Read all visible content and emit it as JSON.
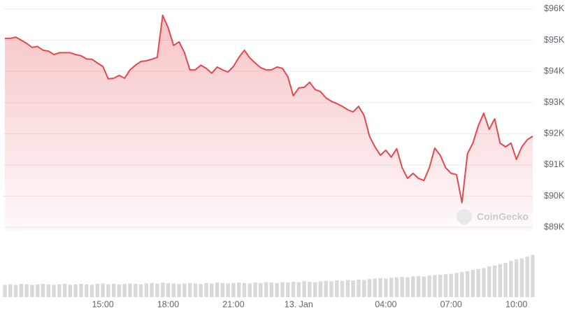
{
  "chart_data": {
    "type": "line",
    "categories": [
      null,
      null,
      null,
      null,
      null,
      null,
      null,
      null,
      null,
      null,
      null,
      null,
      null,
      null,
      null,
      null,
      null,
      null,
      "15:00",
      null,
      null,
      null,
      null,
      null,
      null,
      null,
      null,
      null,
      null,
      null,
      "18:00",
      null,
      null,
      null,
      null,
      null,
      null,
      null,
      null,
      null,
      null,
      null,
      "21:00",
      null,
      null,
      null,
      null,
      null,
      null,
      null,
      null,
      null,
      null,
      null,
      "13. Jan",
      null,
      null,
      null,
      null,
      null,
      null,
      null,
      null,
      null,
      null,
      null,
      null,
      null,
      null,
      null,
      "04:00",
      null,
      null,
      null,
      null,
      null,
      null,
      null,
      null,
      null,
      null,
      null,
      "07:00",
      null,
      null,
      null,
      null,
      null,
      null,
      null,
      null,
      null,
      null,
      null,
      "10:00",
      null,
      null,
      null
    ],
    "values": [
      95060,
      95060,
      95100,
      95000,
      94900,
      94770,
      94800,
      94680,
      94650,
      94540,
      94600,
      94600,
      94600,
      94540,
      94500,
      94400,
      94390,
      94270,
      94160,
      93760,
      93780,
      93870,
      93780,
      94050,
      94200,
      94320,
      94340,
      94390,
      94450,
      95800,
      95400,
      94830,
      94950,
      94600,
      94050,
      94050,
      94200,
      94100,
      93940,
      94140,
      94050,
      93980,
      94160,
      94450,
      94680,
      94430,
      94270,
      94120,
      94050,
      94050,
      94140,
      94100,
      93830,
      93220,
      93470,
      93490,
      93650,
      93420,
      93350,
      93150,
      93040,
      92970,
      92880,
      92770,
      92700,
      92880,
      92590,
      91920,
      91580,
      91310,
      91470,
      91250,
      91520,
      90910,
      90570,
      90730,
      90570,
      90500,
      90910,
      91540,
      91310,
      90910,
      90730,
      90690,
      89790,
      91360,
      91700,
      92260,
      92660,
      92140,
      92480,
      91700,
      91580,
      91700,
      91180,
      91580,
      91810,
      91920
    ],
    "color": "#e5484d",
    "ylim": [
      88890,
      96290
    ],
    "yticks": [
      {
        "value": 96000,
        "label": "$96K"
      },
      {
        "value": 95000,
        "label": "$95K"
      },
      {
        "value": 94000,
        "label": "$94K"
      },
      {
        "value": 93000,
        "label": "$93K"
      },
      {
        "value": 92000,
        "label": "$92K"
      },
      {
        "value": 91000,
        "label": "$91K"
      },
      {
        "value": 90000,
        "label": "$90K"
      },
      {
        "value": 89000,
        "label": "$89K"
      }
    ],
    "grid": true,
    "volume": {
      "values": [
        28,
        29,
        28,
        30,
        29,
        28,
        29,
        30,
        29,
        28,
        29,
        30,
        28,
        29,
        30,
        29,
        28,
        30,
        31,
        29,
        30,
        29,
        30,
        31,
        30,
        29,
        31,
        32,
        31,
        33,
        32,
        31,
        30,
        31,
        32,
        31,
        30,
        32,
        31,
        33,
        32,
        31,
        32,
        33,
        32,
        31,
        33,
        32,
        34,
        33,
        32,
        34,
        33,
        35,
        34,
        36,
        35,
        34,
        36,
        37,
        36,
        38,
        37,
        39,
        38,
        40,
        39,
        41,
        42,
        43,
        42,
        44,
        45,
        46,
        45,
        47,
        48,
        47,
        49,
        50,
        51,
        52,
        53,
        55,
        57,
        59,
        62,
        64,
        66,
        70,
        72,
        75,
        78,
        82,
        86,
        88,
        92,
        96
      ],
      "ylim": [
        0,
        100
      ],
      "color": "#d9d9dc"
    },
    "watermark": "CoinGecko"
  }
}
